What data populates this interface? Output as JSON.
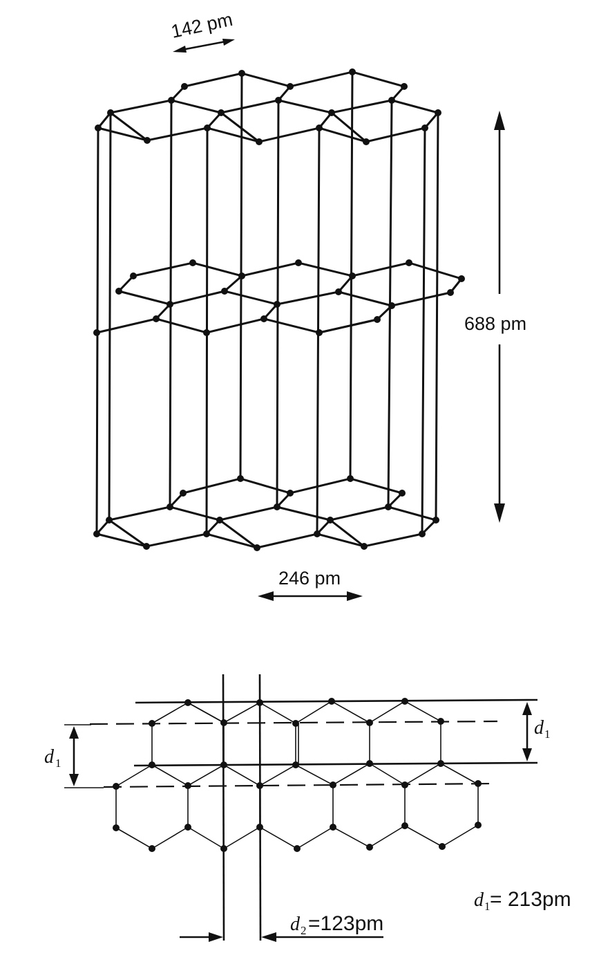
{
  "top_figure": {
    "bond_length_label": "142 pm",
    "interlayer_label": "688 pm",
    "lattice_label": "246 pm"
  },
  "bottom_figure": {
    "d1_left_symbol": "d",
    "d1_left_sub": "1",
    "d1_right_symbol": "d",
    "d1_right_sub": "1",
    "d1_value_symbol": "d",
    "d1_value_sub": "1",
    "d1_value_text": "= 213pm",
    "d2_value_symbol": "d",
    "d2_value_sub": "2",
    "d2_value_text": "=123pm"
  }
}
